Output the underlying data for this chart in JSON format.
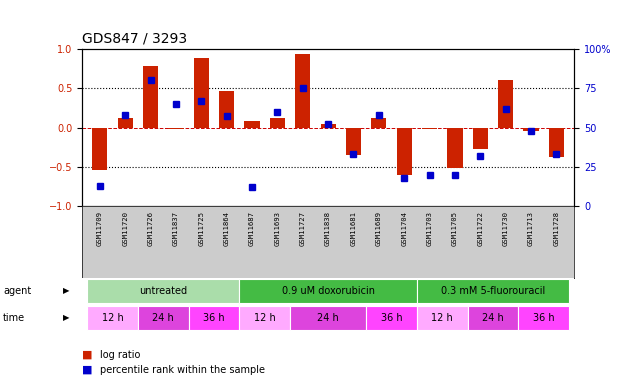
{
  "title": "GDS847 / 3293",
  "samples": [
    "GSM11709",
    "GSM11720",
    "GSM11726",
    "GSM11837",
    "GSM11725",
    "GSM11864",
    "GSM11687",
    "GSM11693",
    "GSM11727",
    "GSM11838",
    "GSM11681",
    "GSM11689",
    "GSM11704",
    "GSM11703",
    "GSM11705",
    "GSM11722",
    "GSM11730",
    "GSM11713",
    "GSM11728"
  ],
  "log_ratios": [
    -0.54,
    0.12,
    0.78,
    -0.02,
    0.88,
    0.46,
    0.08,
    0.12,
    0.93,
    0.04,
    -0.35,
    0.12,
    -0.6,
    -0.02,
    -0.52,
    -0.27,
    0.6,
    -0.05,
    -0.38
  ],
  "percentile_ranks": [
    13,
    58,
    80,
    65,
    67,
    57,
    12,
    60,
    75,
    52,
    33,
    58,
    18,
    20,
    20,
    32,
    62,
    48,
    33
  ],
  "agents": [
    {
      "label": "untreated",
      "start": 0,
      "end": 6,
      "color": "#aaddaa"
    },
    {
      "label": "0.9 uM doxorubicin",
      "start": 6,
      "end": 13,
      "color": "#44bb44"
    },
    {
      "label": "0.3 mM 5-fluorouracil",
      "start": 13,
      "end": 19,
      "color": "#44bb44"
    }
  ],
  "times": [
    {
      "label": "12 h",
      "start": 0,
      "end": 2,
      "color": "#ffaaff"
    },
    {
      "label": "24 h",
      "start": 2,
      "end": 4,
      "color": "#dd44dd"
    },
    {
      "label": "36 h",
      "start": 4,
      "end": 6,
      "color": "#ff44ff"
    },
    {
      "label": "12 h",
      "start": 6,
      "end": 8,
      "color": "#ffaaff"
    },
    {
      "label": "24 h",
      "start": 8,
      "end": 11,
      "color": "#dd44dd"
    },
    {
      "label": "36 h",
      "start": 11,
      "end": 13,
      "color": "#ff44ff"
    },
    {
      "label": "12 h",
      "start": 13,
      "end": 15,
      "color": "#ffaaff"
    },
    {
      "label": "24 h",
      "start": 15,
      "end": 17,
      "color": "#dd44dd"
    },
    {
      "label": "36 h",
      "start": 17,
      "end": 19,
      "color": "#ff44ff"
    }
  ],
  "bar_color": "#CC2200",
  "percentile_color": "#0000CC",
  "ylim_left": [
    -1,
    1
  ],
  "ylim_right": [
    0,
    100
  ],
  "yticks_left": [
    -1,
    -0.5,
    0,
    0.5,
    1
  ],
  "yticks_right": [
    0,
    25,
    50,
    75,
    100
  ],
  "hlines": [
    0.5,
    -0.5
  ],
  "hline_zero_color": "#CC0000",
  "legend_labels": [
    "log ratio",
    "percentile rank within the sample"
  ],
  "legend_colors": [
    "#CC2200",
    "#0000CC"
  ],
  "sample_bg": "#cccccc",
  "bar_width": 0.6
}
